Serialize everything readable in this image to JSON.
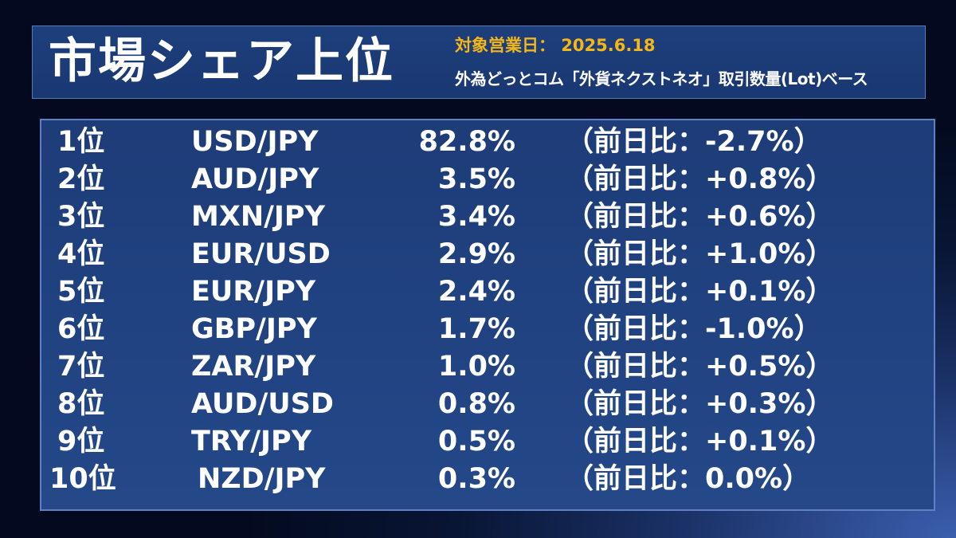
{
  "header": {
    "title": "市場シェア上位",
    "date_label": "対象営業日： 2025.6.18",
    "description": "外為どっとコム「外貨ネクストネオ」取引数量(Lot)ベース"
  },
  "colors": {
    "accent": "#f5b618",
    "panel": "#1d3f7c",
    "border": "#5f80c4"
  },
  "rows": [
    {
      "rank": "1位",
      "pair": "USD/JPY",
      "share": "82.8%",
      "diff": "（前日比：-2.7%）"
    },
    {
      "rank": "2位",
      "pair": "AUD/JPY",
      "share": "3.5%",
      "diff": "（前日比：+0.8%）"
    },
    {
      "rank": "3位",
      "pair": "MXN/JPY",
      "share": "3.4%",
      "diff": "（前日比：+0.6%）"
    },
    {
      "rank": "4位",
      "pair": "EUR/USD",
      "share": "2.9%",
      "diff": "（前日比：+1.0%）"
    },
    {
      "rank": "5位",
      "pair": "EUR/JPY",
      "share": "2.4%",
      "diff": "（前日比：+0.1%）"
    },
    {
      "rank": "6位",
      "pair": "GBP/JPY",
      "share": "1.7%",
      "diff": "（前日比：-1.0%）"
    },
    {
      "rank": "7位",
      "pair": "ZAR/JPY",
      "share": "1.0%",
      "diff": "（前日比：+0.5%）"
    },
    {
      "rank": "8位",
      "pair": "AUD/USD",
      "share": "0.8%",
      "diff": "（前日比：+0.3%）"
    },
    {
      "rank": "9位",
      "pair": "TRY/JPY",
      "share": "0.5%",
      "diff": "（前日比：+0.1%）"
    },
    {
      "rank": "10位",
      "pair": "NZD/JPY",
      "share": "0.3%",
      "diff": "（前日比：0.0%）"
    }
  ]
}
